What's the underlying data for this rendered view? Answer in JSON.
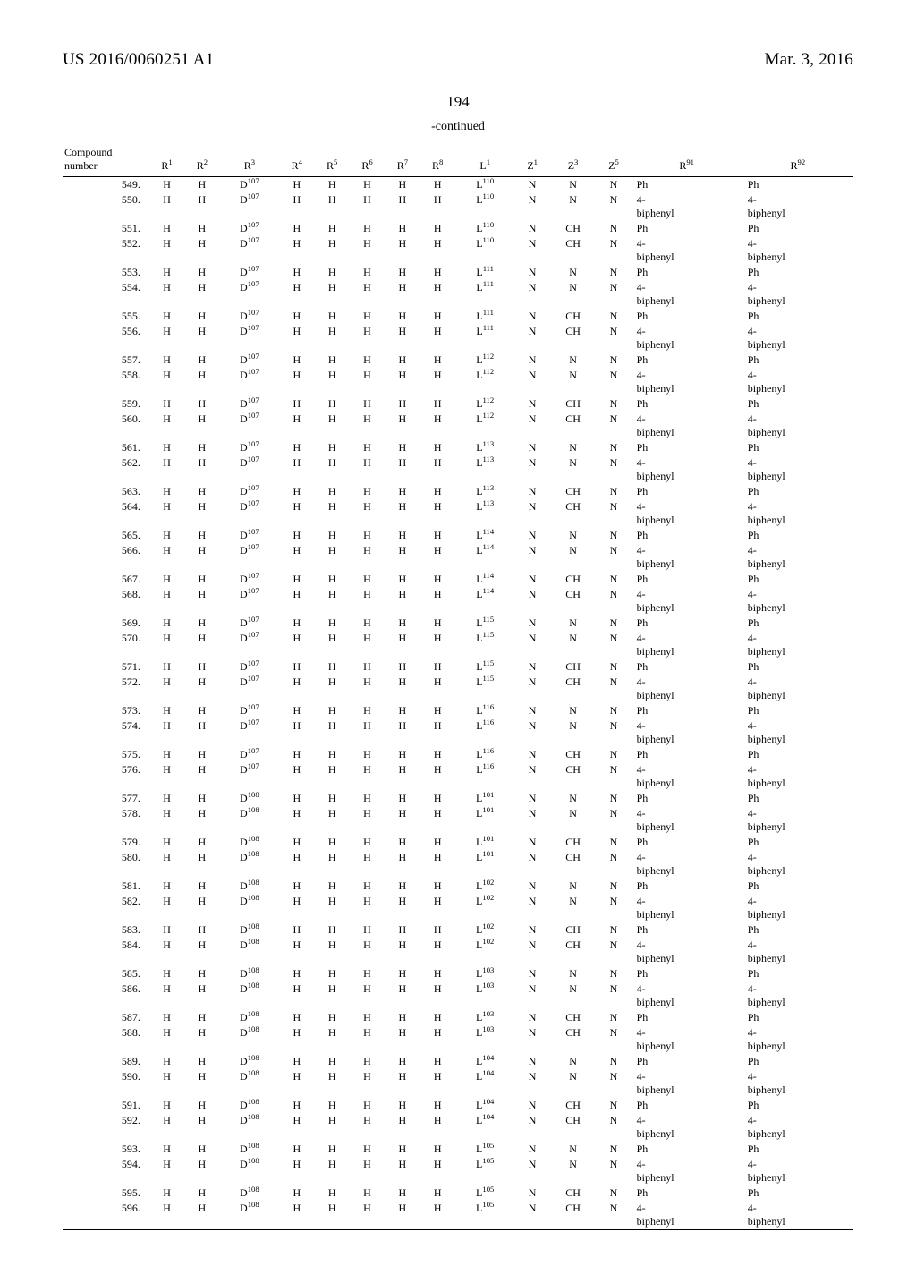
{
  "header_left": "US 2016/0060251 A1",
  "header_right": "Mar. 3, 2016",
  "page_number": "194",
  "continued_label": "-continued",
  "columns": {
    "compound": "Compound number",
    "r1": "R",
    "r1_sup": "1",
    "r2": "R",
    "r2_sup": "2",
    "r3": "R",
    "r3_sup": "3",
    "r4": "R",
    "r4_sup": "4",
    "r5": "R",
    "r5_sup": "5",
    "r6": "R",
    "r6_sup": "6",
    "r7": "R",
    "r7_sup": "7",
    "r8": "R",
    "r8_sup": "8",
    "l1": "L",
    "l1_sup": "1",
    "z1": "Z",
    "z1_sup": "1",
    "z3": "Z",
    "z3_sup": "3",
    "z5": "Z",
    "z5_sup": "5",
    "r91": "R",
    "r91_sup": "91",
    "r92": "R",
    "r92_sup": "92"
  },
  "rows": [
    {
      "n": "549.",
      "d": "107",
      "l": "110",
      "z1": "N",
      "z3": "N",
      "z5": "N",
      "a": "Ph",
      "b": "Ph"
    },
    {
      "n": "550.",
      "d": "107",
      "l": "110",
      "z1": "N",
      "z3": "N",
      "z5": "N",
      "a": "4-biphenyl",
      "b": "4-biphenyl"
    },
    {
      "n": "551.",
      "d": "107",
      "l": "110",
      "z1": "N",
      "z3": "CH",
      "z5": "N",
      "a": "Ph",
      "b": "Ph"
    },
    {
      "n": "552.",
      "d": "107",
      "l": "110",
      "z1": "N",
      "z3": "CH",
      "z5": "N",
      "a": "4-biphenyl",
      "b": "4-biphenyl"
    },
    {
      "n": "553.",
      "d": "107",
      "l": "111",
      "z1": "N",
      "z3": "N",
      "z5": "N",
      "a": "Ph",
      "b": "Ph"
    },
    {
      "n": "554.",
      "d": "107",
      "l": "111",
      "z1": "N",
      "z3": "N",
      "z5": "N",
      "a": "4-biphenyl",
      "b": "4-biphenyl"
    },
    {
      "n": "555.",
      "d": "107",
      "l": "111",
      "z1": "N",
      "z3": "CH",
      "z5": "N",
      "a": "Ph",
      "b": "Ph"
    },
    {
      "n": "556.",
      "d": "107",
      "l": "111",
      "z1": "N",
      "z3": "CH",
      "z5": "N",
      "a": "4-biphenyl",
      "b": "4-biphenyl"
    },
    {
      "n": "557.",
      "d": "107",
      "l": "112",
      "z1": "N",
      "z3": "N",
      "z5": "N",
      "a": "Ph",
      "b": "Ph"
    },
    {
      "n": "558.",
      "d": "107",
      "l": "112",
      "z1": "N",
      "z3": "N",
      "z5": "N",
      "a": "4-biphenyl",
      "b": "4-biphenyl"
    },
    {
      "n": "559.",
      "d": "107",
      "l": "112",
      "z1": "N",
      "z3": "CH",
      "z5": "N",
      "a": "Ph",
      "b": "Ph"
    },
    {
      "n": "560.",
      "d": "107",
      "l": "112",
      "z1": "N",
      "z3": "CH",
      "z5": "N",
      "a": "4-biphenyl",
      "b": "4-biphenyl"
    },
    {
      "n": "561.",
      "d": "107",
      "l": "113",
      "z1": "N",
      "z3": "N",
      "z5": "N",
      "a": "Ph",
      "b": "Ph"
    },
    {
      "n": "562.",
      "d": "107",
      "l": "113",
      "z1": "N",
      "z3": "N",
      "z5": "N",
      "a": "4-biphenyl",
      "b": "4-biphenyl"
    },
    {
      "n": "563.",
      "d": "107",
      "l": "113",
      "z1": "N",
      "z3": "CH",
      "z5": "N",
      "a": "Ph",
      "b": "Ph"
    },
    {
      "n": "564.",
      "d": "107",
      "l": "113",
      "z1": "N",
      "z3": "CH",
      "z5": "N",
      "a": "4-biphenyl",
      "b": "4-biphenyl"
    },
    {
      "n": "565.",
      "d": "107",
      "l": "114",
      "z1": "N",
      "z3": "N",
      "z5": "N",
      "a": "Ph",
      "b": "Ph"
    },
    {
      "n": "566.",
      "d": "107",
      "l": "114",
      "z1": "N",
      "z3": "N",
      "z5": "N",
      "a": "4-biphenyl",
      "b": "4-biphenyl"
    },
    {
      "n": "567.",
      "d": "107",
      "l": "114",
      "z1": "N",
      "z3": "CH",
      "z5": "N",
      "a": "Ph",
      "b": "Ph"
    },
    {
      "n": "568.",
      "d": "107",
      "l": "114",
      "z1": "N",
      "z3": "CH",
      "z5": "N",
      "a": "4-biphenyl",
      "b": "4-biphenyl"
    },
    {
      "n": "569.",
      "d": "107",
      "l": "115",
      "z1": "N",
      "z3": "N",
      "z5": "N",
      "a": "Ph",
      "b": "Ph"
    },
    {
      "n": "570.",
      "d": "107",
      "l": "115",
      "z1": "N",
      "z3": "N",
      "z5": "N",
      "a": "4-biphenyl",
      "b": "4-biphenyl"
    },
    {
      "n": "571.",
      "d": "107",
      "l": "115",
      "z1": "N",
      "z3": "CH",
      "z5": "N",
      "a": "Ph",
      "b": "Ph"
    },
    {
      "n": "572.",
      "d": "107",
      "l": "115",
      "z1": "N",
      "z3": "CH",
      "z5": "N",
      "a": "4-biphenyl",
      "b": "4-biphenyl"
    },
    {
      "n": "573.",
      "d": "107",
      "l": "116",
      "z1": "N",
      "z3": "N",
      "z5": "N",
      "a": "Ph",
      "b": "Ph"
    },
    {
      "n": "574.",
      "d": "107",
      "l": "116",
      "z1": "N",
      "z3": "N",
      "z5": "N",
      "a": "4-biphenyl",
      "b": "4-biphenyl"
    },
    {
      "n": "575.",
      "d": "107",
      "l": "116",
      "z1": "N",
      "z3": "CH",
      "z5": "N",
      "a": "Ph",
      "b": "Ph"
    },
    {
      "n": "576.",
      "d": "107",
      "l": "116",
      "z1": "N",
      "z3": "CH",
      "z5": "N",
      "a": "4-biphenyl",
      "b": "4-biphenyl"
    },
    {
      "n": "577.",
      "d": "108",
      "l": "101",
      "z1": "N",
      "z3": "N",
      "z5": "N",
      "a": "Ph",
      "b": "Ph"
    },
    {
      "n": "578.",
      "d": "108",
      "l": "101",
      "z1": "N",
      "z3": "N",
      "z5": "N",
      "a": "4-biphenyl",
      "b": "4-biphenyl"
    },
    {
      "n": "579.",
      "d": "108",
      "l": "101",
      "z1": "N",
      "z3": "CH",
      "z5": "N",
      "a": "Ph",
      "b": "Ph"
    },
    {
      "n": "580.",
      "d": "108",
      "l": "101",
      "z1": "N",
      "z3": "CH",
      "z5": "N",
      "a": "4-biphenyl",
      "b": "4-biphenyl"
    },
    {
      "n": "581.",
      "d": "108",
      "l": "102",
      "z1": "N",
      "z3": "N",
      "z5": "N",
      "a": "Ph",
      "b": "Ph"
    },
    {
      "n": "582.",
      "d": "108",
      "l": "102",
      "z1": "N",
      "z3": "N",
      "z5": "N",
      "a": "4-biphenyl",
      "b": "4-biphenyl"
    },
    {
      "n": "583.",
      "d": "108",
      "l": "102",
      "z1": "N",
      "z3": "CH",
      "z5": "N",
      "a": "Ph",
      "b": "Ph"
    },
    {
      "n": "584.",
      "d": "108",
      "l": "102",
      "z1": "N",
      "z3": "CH",
      "z5": "N",
      "a": "4-biphenyl",
      "b": "4-biphenyl"
    },
    {
      "n": "585.",
      "d": "108",
      "l": "103",
      "z1": "N",
      "z3": "N",
      "z5": "N",
      "a": "Ph",
      "b": "Ph"
    },
    {
      "n": "586.",
      "d": "108",
      "l": "103",
      "z1": "N",
      "z3": "N",
      "z5": "N",
      "a": "4-biphenyl",
      "b": "4-biphenyl"
    },
    {
      "n": "587.",
      "d": "108",
      "l": "103",
      "z1": "N",
      "z3": "CH",
      "z5": "N",
      "a": "Ph",
      "b": "Ph"
    },
    {
      "n": "588.",
      "d": "108",
      "l": "103",
      "z1": "N",
      "z3": "CH",
      "z5": "N",
      "a": "4-biphenyl",
      "b": "4-biphenyl"
    },
    {
      "n": "589.",
      "d": "108",
      "l": "104",
      "z1": "N",
      "z3": "N",
      "z5": "N",
      "a": "Ph",
      "b": "Ph"
    },
    {
      "n": "590.",
      "d": "108",
      "l": "104",
      "z1": "N",
      "z3": "N",
      "z5": "N",
      "a": "4-biphenyl",
      "b": "4-biphenyl"
    },
    {
      "n": "591.",
      "d": "108",
      "l": "104",
      "z1": "N",
      "z3": "CH",
      "z5": "N",
      "a": "Ph",
      "b": "Ph"
    },
    {
      "n": "592.",
      "d": "108",
      "l": "104",
      "z1": "N",
      "z3": "CH",
      "z5": "N",
      "a": "4-biphenyl",
      "b": "4-biphenyl"
    },
    {
      "n": "593.",
      "d": "108",
      "l": "105",
      "z1": "N",
      "z3": "N",
      "z5": "N",
      "a": "Ph",
      "b": "Ph"
    },
    {
      "n": "594.",
      "d": "108",
      "l": "105",
      "z1": "N",
      "z3": "N",
      "z5": "N",
      "a": "4-biphenyl",
      "b": "4-biphenyl"
    },
    {
      "n": "595.",
      "d": "108",
      "l": "105",
      "z1": "N",
      "z3": "CH",
      "z5": "N",
      "a": "Ph",
      "b": "Ph"
    },
    {
      "n": "596.",
      "d": "108",
      "l": "105",
      "z1": "N",
      "z3": "CH",
      "z5": "N",
      "a": "4-biphenyl",
      "b": "4-biphenyl"
    }
  ]
}
